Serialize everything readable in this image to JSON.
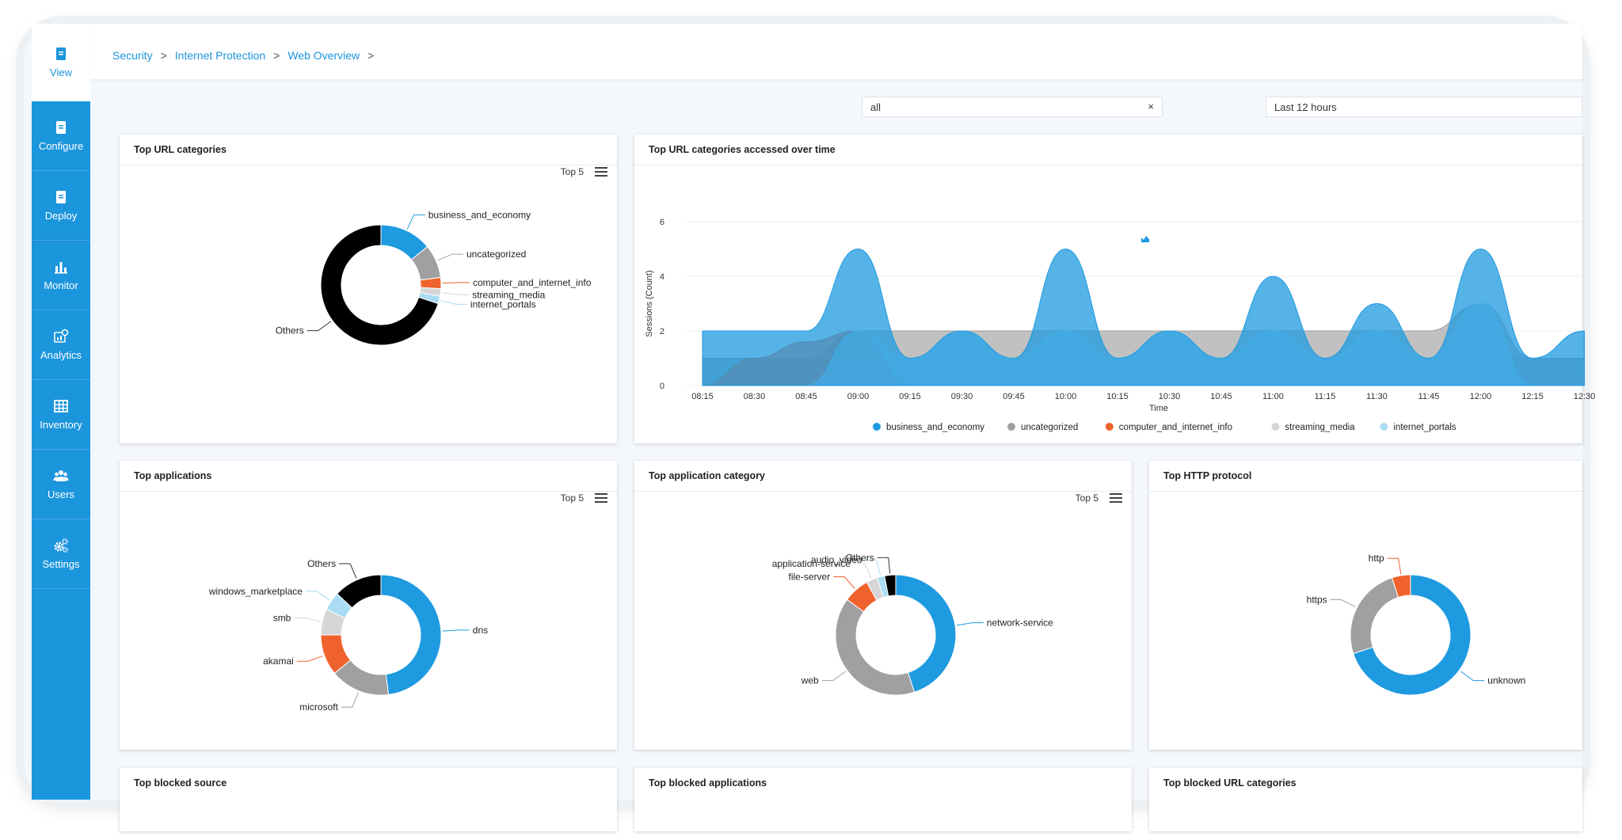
{
  "sidebar": {
    "items": [
      {
        "label": "View",
        "icon": "document-icon"
      },
      {
        "label": "Configure",
        "icon": "document-icon"
      },
      {
        "label": "Deploy",
        "icon": "document-icon"
      },
      {
        "label": "Monitor",
        "icon": "bar-chart-icon"
      },
      {
        "label": "Analytics",
        "icon": "analytics-icon"
      },
      {
        "label": "Inventory",
        "icon": "inventory-icon"
      },
      {
        "label": "Users",
        "icon": "users-icon"
      },
      {
        "label": "Settings",
        "icon": "gears-icon"
      }
    ]
  },
  "breadcrumb": {
    "items": [
      "Security",
      "Internet Protection",
      "Web Overview"
    ],
    "sep": ">"
  },
  "filters": {
    "search_value": "all",
    "clear": "×",
    "time_range": "Last 12 hours"
  },
  "colors": {
    "accent": "#1b95dc",
    "blue": "#1e9ae0",
    "gray": "#a0a0a0",
    "orange": "#f0622d",
    "lightgray": "#d6d6d6",
    "lightblue": "#a9dcf2",
    "black": "#000000"
  },
  "cards": {
    "url_categories": {
      "title": "Top URL categories",
      "top": "Top 5"
    },
    "url_time": {
      "title": "Top URL categories accessed over time"
    },
    "applications": {
      "title": "Top applications",
      "top": "Top 5"
    },
    "app_category": {
      "title": "Top application category",
      "top": "Top 5"
    },
    "http_protocol": {
      "title": "Top HTTP protocol"
    },
    "blocked_source": {
      "title": "Top blocked source"
    },
    "blocked_apps": {
      "title": "Top blocked applications"
    },
    "blocked_url": {
      "title": "Top blocked URL categories"
    }
  },
  "chart_data": [
    {
      "type": "pie",
      "donut": true,
      "title": "Top URL categories",
      "slices": [
        {
          "label": "business_and_economy",
          "value": 14,
          "color": "#1e9ae0"
        },
        {
          "label": "uncategorized",
          "value": 9,
          "color": "#a0a0a0"
        },
        {
          "label": "computer_and_internet_info",
          "value": 3,
          "color": "#f0622d"
        },
        {
          "label": "streaming_media",
          "value": 2,
          "color": "#d6d6d6"
        },
        {
          "label": "internet_portals",
          "value": 2,
          "color": "#a9dcf2"
        },
        {
          "label": "Others",
          "value": 70,
          "color": "#000000"
        }
      ]
    },
    {
      "type": "area",
      "title": "Top URL categories accessed over time",
      "xlabel": "Time",
      "ylabel": "Sessions (Count)",
      "ylim": [
        0,
        6
      ],
      "yticks": [
        0,
        2,
        4,
        6
      ],
      "x": [
        "08:15",
        "08:30",
        "08:45",
        "09:00",
        "09:15",
        "09:30",
        "09:45",
        "10:00",
        "10:15",
        "10:30",
        "10:45",
        "11:00",
        "11:15",
        "11:30",
        "11:45",
        "12:00",
        "12:15",
        "12:30"
      ],
      "series": [
        {
          "name": "business_and_economy",
          "color": "#1e9ae0",
          "values": [
            2,
            2,
            2,
            5,
            1,
            2,
            1,
            5,
            1,
            2,
            1,
            4,
            1,
            3,
            1,
            5,
            1,
            2
          ]
        },
        {
          "name": "uncategorized",
          "color": "#a0a0a0",
          "values": [
            1,
            1,
            1,
            2,
            2,
            2,
            2,
            2,
            2,
            2,
            2,
            2,
            2,
            2,
            2,
            3,
            1,
            1
          ]
        },
        {
          "name": "computer_and_internet_info",
          "color": "#f0622d",
          "values": [
            0,
            1,
            1.6,
            2,
            0,
            0,
            0,
            0,
            0,
            0,
            0,
            0,
            0,
            0,
            0,
            0,
            0,
            0
          ]
        },
        {
          "name": "streaming_media",
          "color": "#d6d6d6",
          "values": [
            1,
            1,
            1,
            1,
            1,
            1,
            1,
            1,
            1,
            1,
            1,
            1,
            1,
            1,
            1,
            1,
            1,
            1
          ]
        },
        {
          "name": "internet_portals",
          "color": "#a9dcf2",
          "values": [
            0,
            0,
            0,
            2,
            1,
            2,
            1,
            2,
            1,
            2,
            1,
            2,
            1,
            2,
            1,
            3,
            0,
            0
          ]
        }
      ],
      "legend": "bottom"
    },
    {
      "type": "pie",
      "donut": true,
      "title": "Top applications",
      "slices": [
        {
          "label": "dns",
          "value": 48,
          "color": "#1e9ae0"
        },
        {
          "label": "microsoft",
          "value": 16,
          "color": "#a0a0a0"
        },
        {
          "label": "akamai",
          "value": 11,
          "color": "#f0622d"
        },
        {
          "label": "smb",
          "value": 7,
          "color": "#d6d6d6"
        },
        {
          "label": "windows_marketplace",
          "value": 5,
          "color": "#a9dcf2"
        },
        {
          "label": "Others",
          "value": 13,
          "color": "#000000"
        }
      ]
    },
    {
      "type": "pie",
      "donut": true,
      "title": "Top application category",
      "slices": [
        {
          "label": "network-service",
          "value": 45,
          "color": "#1e9ae0"
        },
        {
          "label": "web",
          "value": 40,
          "color": "#a0a0a0"
        },
        {
          "label": "file-server",
          "value": 7,
          "color": "#f0622d"
        },
        {
          "label": "application-service",
          "value": 3,
          "color": "#d6d6d6"
        },
        {
          "label": "audio_video",
          "value": 2,
          "color": "#a9dcf2"
        },
        {
          "label": "Others",
          "value": 3,
          "color": "#000000"
        }
      ]
    },
    {
      "type": "pie",
      "donut": true,
      "title": "Top HTTP protocol",
      "slices": [
        {
          "label": "unknown",
          "value": 70,
          "color": "#1e9ae0"
        },
        {
          "label": "https",
          "value": 25,
          "color": "#a0a0a0"
        },
        {
          "label": "http",
          "value": 5,
          "color": "#f0622d"
        }
      ]
    }
  ]
}
